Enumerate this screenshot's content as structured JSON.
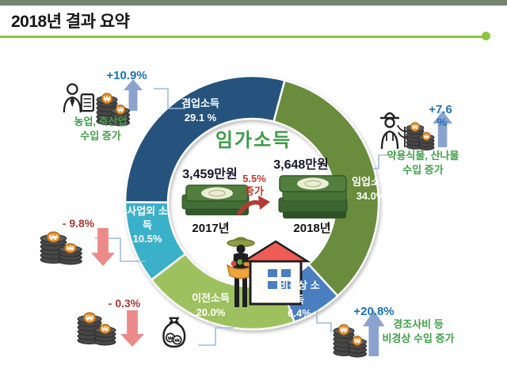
{
  "header": {
    "title": "2018년 결과 요약"
  },
  "chart_data": {
    "type": "pie",
    "subtype": "donut",
    "title": "임가소득",
    "unit": "%",
    "start_angle_deg": 15,
    "direction": "clockwise",
    "legend_position": "on-slices",
    "segments": [
      {
        "label": "임업소득",
        "value": 34.0,
        "pct_label": "34.0%",
        "color": "#6b8c3e"
      },
      {
        "label": "비경상 소득",
        "value": 6.4,
        "pct_label": "6.4%",
        "color": "#4a7fc0"
      },
      {
        "label": "이전소득",
        "value": 20.0,
        "pct_label": "20.0%",
        "color": "#9ec161"
      },
      {
        "label": "사업외 소득",
        "value": 10.5,
        "pct_label": "10.5%",
        "color": "#3ab0c9"
      },
      {
        "label": "겸업소득",
        "value": 29.1,
        "pct_label": "29.1 %",
        "color": "#27537d"
      }
    ],
    "center": {
      "title": "임가소득",
      "items": [
        {
          "year": "2017년",
          "value": "3,459만원"
        },
        {
          "year": "2018년",
          "value": "3,648만원"
        }
      ],
      "change_lines": [
        "5.5%",
        "증가"
      ]
    }
  },
  "annotations": [
    {
      "id": "farm",
      "pct": "+10.9%",
      "trend": "up",
      "desc_lines": [
        "농업, 축산업",
        "수입 증가"
      ]
    },
    {
      "id": "forestry",
      "pct": "+7.6%",
      "pct_display": [
        "+7.6",
        "%"
      ],
      "trend": "up",
      "desc_lines": [
        "약용식물, 산나물",
        "수입 증가"
      ]
    },
    {
      "id": "non-business",
      "pct": "- 9.8%",
      "trend": "down",
      "desc_lines": []
    },
    {
      "id": "transfer",
      "pct": "- 0.3%",
      "trend": "down",
      "desc_lines": []
    },
    {
      "id": "irregular",
      "pct": "+20.8%",
      "trend": "up",
      "desc_lines": [
        "경조사비 등",
        "비경상 수입 증가"
      ]
    }
  ],
  "colors": {
    "accent_green_rule": "#8dc63f",
    "pct_up_blue": "#1b72b8",
    "pct_down_red": "#b03636",
    "desc_green": "#3fa049",
    "up_arrow": "#8ba4cf",
    "down_arrow": "#ec8a8a",
    "coin_won_badge": "#e8922e"
  }
}
